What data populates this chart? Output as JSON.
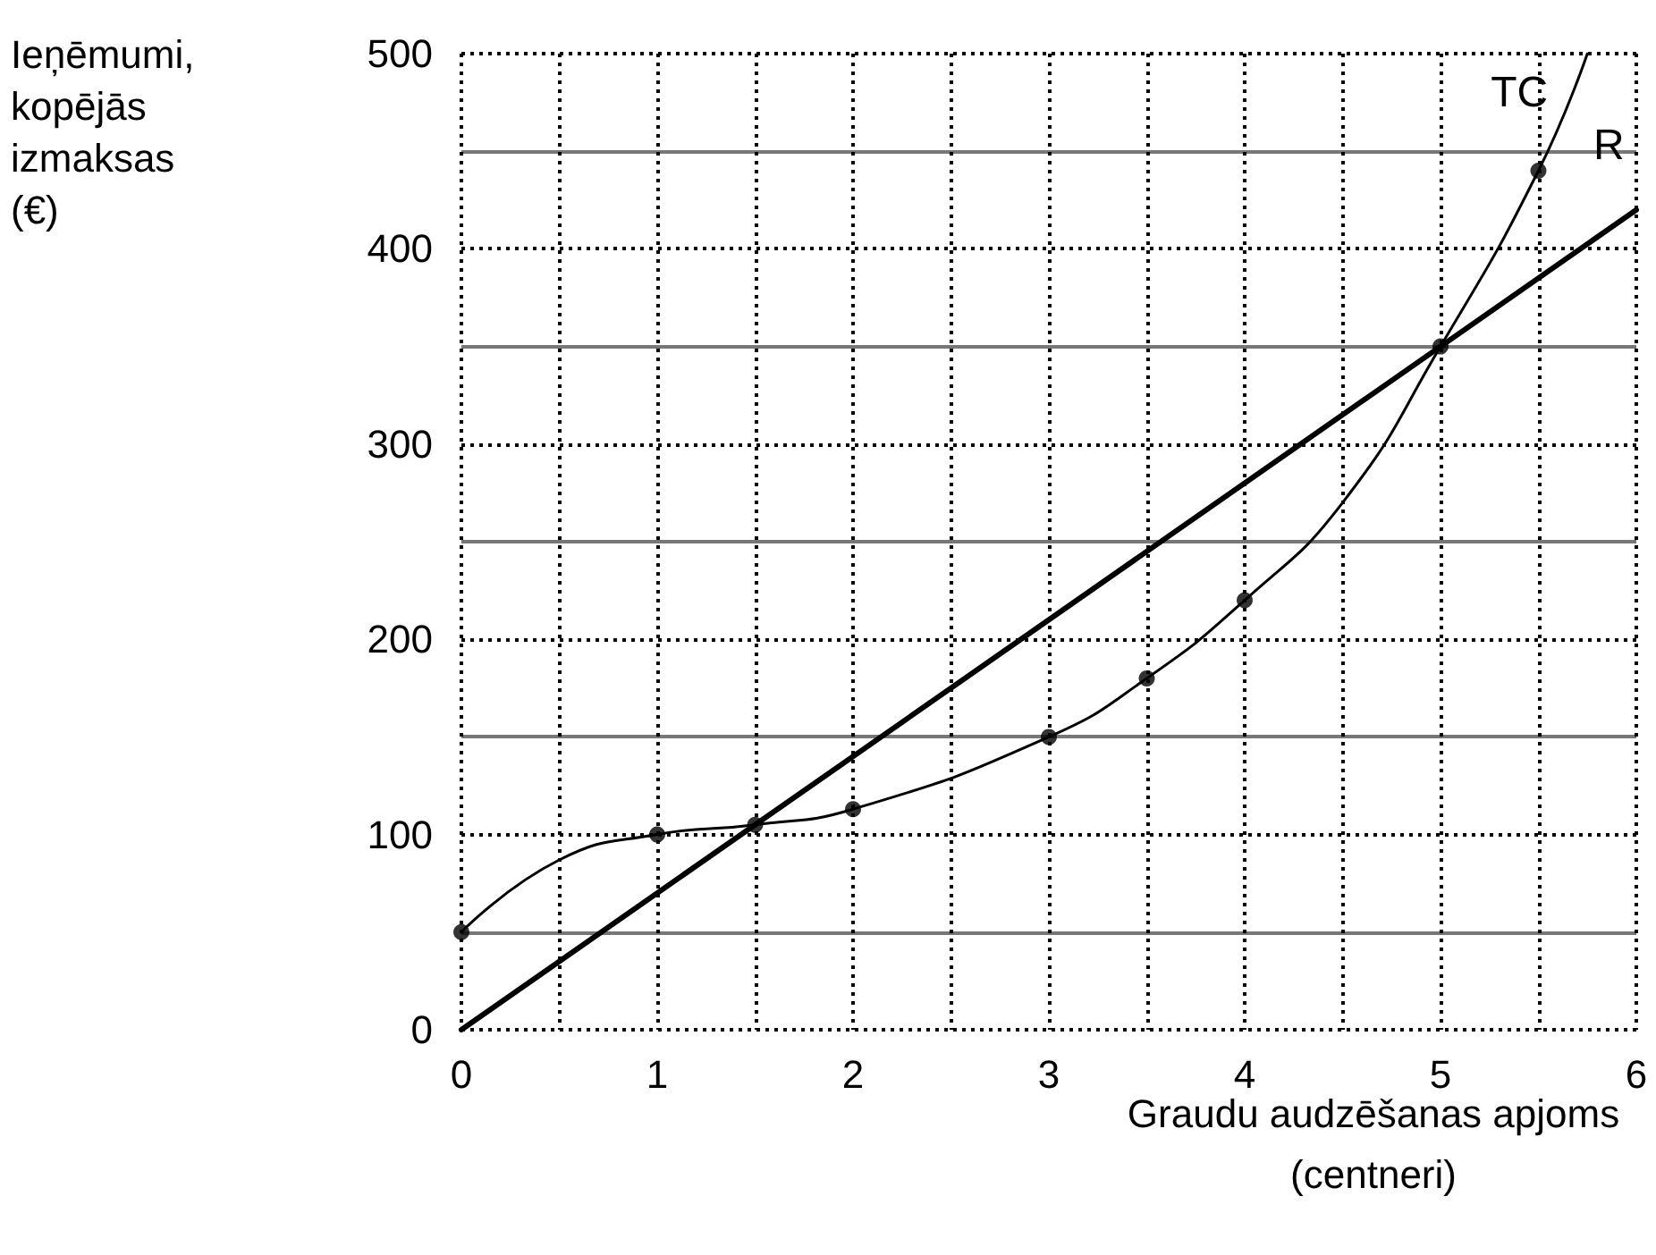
{
  "chart_data": {
    "type": "line",
    "xlabel": "Graudu audzēšanas apjoms\n(centneri)",
    "ylabel": "Ieņēmumi,\nkopējās\nizmaksas\n(€)",
    "xlim": [
      0,
      6
    ],
    "xticks": [
      0,
      1,
      2,
      3,
      4,
      5,
      6
    ],
    "ylim": [
      0,
      500
    ],
    "yticks": [
      0,
      100,
      200,
      300,
      400,
      500
    ],
    "grid": true,
    "line_style": "solid",
    "series": [
      {
        "name": "TC",
        "color": "#000000",
        "marker": "none",
        "x": [
          0,
          0.5,
          1,
          1.5,
          2,
          3,
          3.5,
          4,
          4.5,
          5,
          5.5,
          5.75
        ],
        "values": [
          50,
          87,
          100,
          105,
          113,
          150,
          180,
          220,
          270,
          350,
          440,
          500
        ]
      },
      {
        "name": "R",
        "color": "#000000",
        "marker": "none",
        "x": [
          0,
          6
        ],
        "values": [
          0,
          420
        ]
      },
      {
        "type": "scatter",
        "color": "#000000",
        "marker": "circle",
        "x": [
          0,
          1,
          1.5,
          2,
          3,
          3.5,
          4,
          5,
          5.5
        ],
        "values": [
          50,
          100,
          105,
          113,
          150,
          180,
          220,
          350,
          440
        ]
      }
    ]
  }
}
